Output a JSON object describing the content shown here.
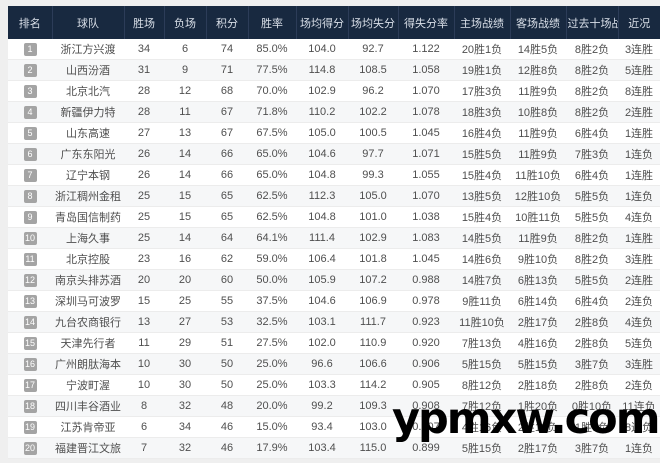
{
  "table": {
    "columns": [
      "排名",
      "球队",
      "胜场",
      "负场",
      "积分",
      "胜率",
      "场均得分",
      "场均失分",
      "得失分率",
      "主场战绩",
      "客场战绩",
      "过去十场战绩",
      "近况"
    ],
    "rows": [
      [
        "1",
        "浙江方兴渡",
        "34",
        "6",
        "74",
        "85.0%",
        "104.0",
        "92.7",
        "1.122",
        "20胜1负",
        "14胜5负",
        "8胜2负",
        "3连胜"
      ],
      [
        "2",
        "山西汾酒",
        "31",
        "9",
        "71",
        "77.5%",
        "114.8",
        "108.5",
        "1.058",
        "19胜1负",
        "12胜8负",
        "8胜2负",
        "5连胜"
      ],
      [
        "3",
        "北京北汽",
        "28",
        "12",
        "68",
        "70.0%",
        "102.9",
        "96.2",
        "1.070",
        "17胜3负",
        "11胜9负",
        "8胜2负",
        "8连胜"
      ],
      [
        "4",
        "新疆伊力特",
        "28",
        "11",
        "67",
        "71.8%",
        "110.2",
        "102.2",
        "1.078",
        "18胜3负",
        "10胜8负",
        "8胜2负",
        "2连胜"
      ],
      [
        "5",
        "山东高速",
        "27",
        "13",
        "67",
        "67.5%",
        "105.0",
        "100.5",
        "1.045",
        "16胜4负",
        "11胜9负",
        "6胜4负",
        "1连胜"
      ],
      [
        "6",
        "广东东阳光",
        "26",
        "14",
        "66",
        "65.0%",
        "104.6",
        "97.7",
        "1.071",
        "15胜5负",
        "11胜9负",
        "7胜3负",
        "1连负"
      ],
      [
        "7",
        "辽宁本钢",
        "26",
        "14",
        "66",
        "65.0%",
        "104.8",
        "99.3",
        "1.055",
        "15胜4负",
        "11胜10负",
        "6胜4负",
        "1连胜"
      ],
      [
        "8",
        "浙江稠州金租",
        "25",
        "15",
        "65",
        "62.5%",
        "112.3",
        "105.0",
        "1.070",
        "13胜5负",
        "12胜10负",
        "5胜5负",
        "1连负"
      ],
      [
        "9",
        "青岛国信制药",
        "25",
        "15",
        "65",
        "62.5%",
        "104.8",
        "101.0",
        "1.038",
        "15胜4负",
        "10胜11负",
        "5胜5负",
        "4连负"
      ],
      [
        "10",
        "上海久事",
        "25",
        "14",
        "64",
        "64.1%",
        "111.4",
        "102.9",
        "1.083",
        "14胜5负",
        "11胜9负",
        "8胜2负",
        "1连胜"
      ],
      [
        "11",
        "北京控股",
        "23",
        "16",
        "62",
        "59.0%",
        "106.4",
        "101.8",
        "1.045",
        "14胜6负",
        "9胜10负",
        "8胜2负",
        "3连胜"
      ],
      [
        "12",
        "南京头排苏酒",
        "20",
        "20",
        "60",
        "50.0%",
        "105.9",
        "107.2",
        "0.988",
        "14胜7负",
        "6胜13负",
        "5胜5负",
        "2连胜"
      ],
      [
        "13",
        "深圳马可波罗",
        "15",
        "25",
        "55",
        "37.5%",
        "104.6",
        "106.9",
        "0.978",
        "9胜11负",
        "6胜14负",
        "6胜4负",
        "2连负"
      ],
      [
        "14",
        "九台农商银行",
        "13",
        "27",
        "53",
        "32.5%",
        "103.1",
        "111.7",
        "0.923",
        "11胜10负",
        "2胜17负",
        "2胜8负",
        "4连负"
      ],
      [
        "15",
        "天津先行者",
        "11",
        "29",
        "51",
        "27.5%",
        "102.0",
        "110.9",
        "0.920",
        "7胜13负",
        "4胜16负",
        "2胜8负",
        "5连负"
      ],
      [
        "16",
        "广州朗肽海本",
        "10",
        "30",
        "50",
        "25.0%",
        "96.6",
        "106.6",
        "0.906",
        "5胜15负",
        "5胜15负",
        "3胜7负",
        "3连胜"
      ],
      [
        "17",
        "宁波町渥",
        "10",
        "30",
        "50",
        "25.0%",
        "103.3",
        "114.2",
        "0.905",
        "8胜12负",
        "2胜18负",
        "2胜8负",
        "2连负"
      ],
      [
        "18",
        "四川丰谷酒业",
        "8",
        "32",
        "48",
        "20.0%",
        "99.2",
        "109.3",
        "0.908",
        "7胜12负",
        "1胜20负",
        "0胜10负",
        "11连负"
      ],
      [
        "19",
        "江苏肯帝亚",
        "6",
        "34",
        "46",
        "15.0%",
        "93.4",
        "103.0",
        "0.907",
        "4胜16负",
        "2胜18负",
        "1胜9负",
        "8连负"
      ],
      [
        "20",
        "福建晋江文旅",
        "7",
        "32",
        "46",
        "17.9%",
        "103.4",
        "115.0",
        "0.899",
        "5胜15负",
        "2胜17负",
        "3胜7负",
        "1连负"
      ]
    ]
  },
  "watermark": {
    "text": "ypmxw.com"
  },
  "colors": {
    "header_bg": "#182940",
    "header_text": "#d9dfe8",
    "badge_bg": "#a4a4a4",
    "row_stripe": "#f6f7f8",
    "watermark": "#000000"
  }
}
